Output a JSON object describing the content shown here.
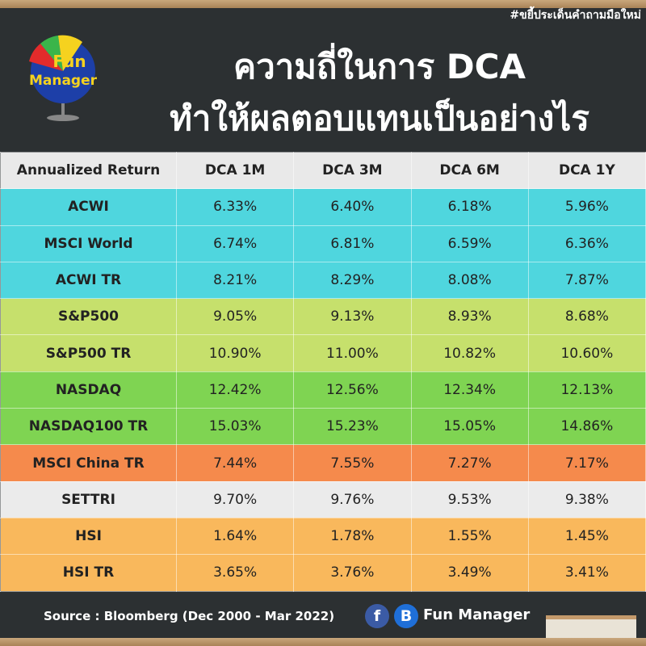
{
  "header": {
    "hashtag": "#ขยี้ประเด็นคำถามมือใหม่",
    "logo_line1": "Fun",
    "logo_line2": "Manager",
    "title_line1": "ความถี่ในการ DCA",
    "title_line2": "ทำให้ผลตอบแทนเป็นอย่างไร"
  },
  "table": {
    "columns": [
      "Annualized Return",
      "DCA 1M",
      "DCA 3M",
      "DCA 6M",
      "DCA 1Y"
    ],
    "rows": [
      {
        "color": "#4fd6de",
        "cells": [
          "ACWI",
          "6.33%",
          "6.40%",
          "6.18%",
          "5.96%"
        ]
      },
      {
        "color": "#4fd6de",
        "cells": [
          "MSCI World",
          "6.74%",
          "6.81%",
          "6.59%",
          "6.36%"
        ]
      },
      {
        "color": "#4fd6de",
        "cells": [
          "ACWI TR",
          "8.21%",
          "8.29%",
          "8.08%",
          "7.87%"
        ]
      },
      {
        "color": "#c6e06c",
        "cells": [
          "S&P500",
          "9.05%",
          "9.13%",
          "8.93%",
          "8.68%"
        ]
      },
      {
        "color": "#c6e06c",
        "cells": [
          "S&P500 TR",
          "10.90%",
          "11.00%",
          "10.82%",
          "10.60%"
        ]
      },
      {
        "color": "#7fd452",
        "cells": [
          "NASDAQ",
          "12.42%",
          "12.56%",
          "12.34%",
          "12.13%"
        ]
      },
      {
        "color": "#7fd452",
        "cells": [
          "NASDAQ100 TR",
          "15.03%",
          "15.23%",
          "15.05%",
          "14.86%"
        ]
      },
      {
        "color": "#f58a4c",
        "cells": [
          "MSCI China TR",
          "7.44%",
          "7.55%",
          "7.27%",
          "7.17%"
        ]
      },
      {
        "color": "#ebebeb",
        "cells": [
          "SETTRI",
          "9.70%",
          "9.76%",
          "9.53%",
          "9.38%"
        ]
      },
      {
        "color": "#f9b85c",
        "cells": [
          "HSI",
          "1.64%",
          "1.78%",
          "1.55%",
          "1.45%"
        ]
      },
      {
        "color": "#f9b85c",
        "cells": [
          "HSI TR",
          "3.65%",
          "3.76%",
          "3.49%",
          "3.41%"
        ]
      }
    ]
  },
  "footer": {
    "source": "Source : Bloomberg (Dec 2000 - Mar 2022)",
    "icon_facebook": "f",
    "icon_blog": "B",
    "brand": "Fun Manager"
  }
}
